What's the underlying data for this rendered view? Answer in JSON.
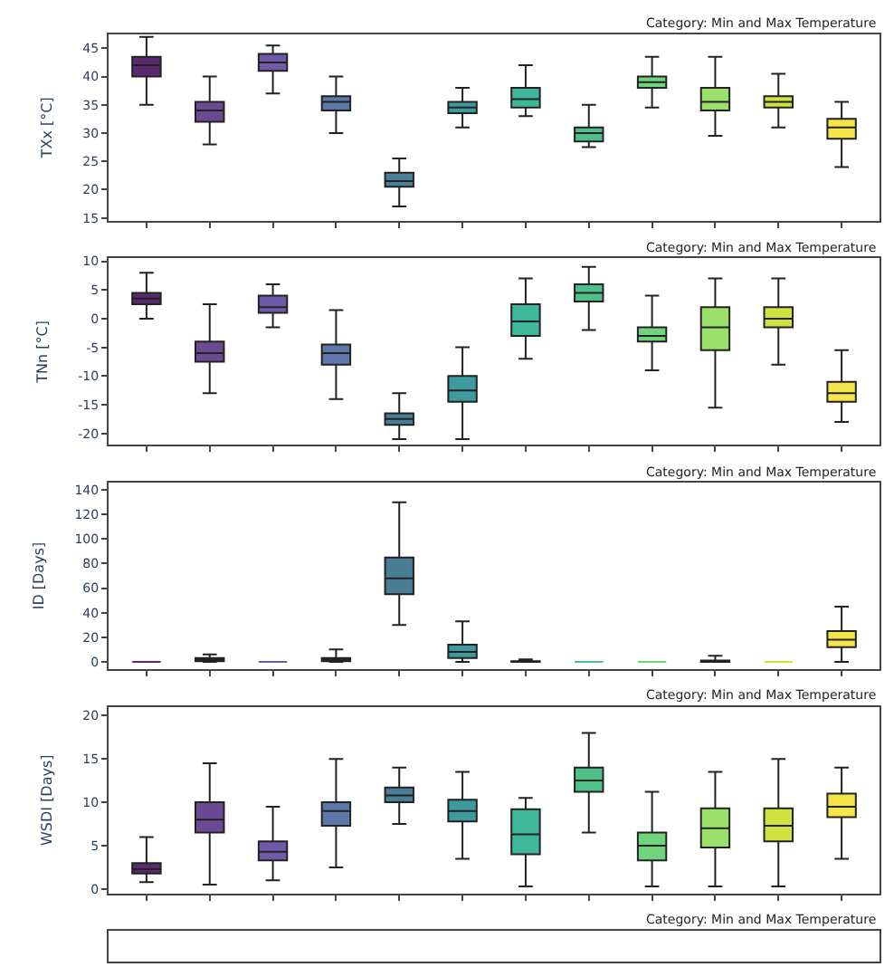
{
  "chart_data": [
    {
      "type": "box",
      "title": "Category: Min and Max Temperature",
      "ylabel": "TXx [°C]",
      "categories": [
        null,
        null,
        null,
        null,
        null,
        null,
        null,
        null,
        null,
        null,
        null,
        null
      ],
      "ylim": [
        14.5,
        47.5
      ],
      "yticks": [
        15,
        20,
        25,
        30,
        35,
        40,
        45
      ],
      "tick_labels": "y",
      "colors": [
        "#5b2a6e",
        "#6b4a94",
        "#6e5aa6",
        "#5b78a8",
        "#4a7e94",
        "#3e9a9c",
        "#3fb79a",
        "#4fc089",
        "#6fd47d",
        "#9be06a",
        "#d0e23f",
        "#f3e54a"
      ],
      "boxes": [
        {
          "low": 35,
          "q1": 40,
          "median": 42,
          "q3": 43.5,
          "high": 47
        },
        {
          "low": 28,
          "q1": 32,
          "median": 34,
          "q3": 35.5,
          "high": 40
        },
        {
          "low": 37,
          "q1": 41,
          "median": 42.5,
          "q3": 44,
          "high": 45.5
        },
        {
          "low": 30,
          "q1": 34,
          "median": 35.5,
          "q3": 36.5,
          "high": 40
        },
        {
          "low": 17,
          "q1": 20.5,
          "median": 21.5,
          "q3": 23,
          "high": 25.5
        },
        {
          "low": 31,
          "q1": 33.5,
          "median": 34.5,
          "q3": 35.5,
          "high": 38
        },
        {
          "low": 33,
          "q1": 34.5,
          "median": 36,
          "q3": 38,
          "high": 42
        },
        {
          "low": 27.5,
          "q1": 28.5,
          "median": 30,
          "q3": 31,
          "high": 35
        },
        {
          "low": 34.5,
          "q1": 38,
          "median": 39,
          "q3": 40,
          "high": 43.5
        },
        {
          "low": 29.5,
          "q1": 34,
          "median": 35.5,
          "q3": 38,
          "high": 43.5
        },
        {
          "low": 31,
          "q1": 34.5,
          "median": 35.5,
          "q3": 36.5,
          "high": 40.5
        },
        {
          "low": 24,
          "q1": 29,
          "median": 31,
          "q3": 32.5,
          "high": 35.5
        }
      ]
    },
    {
      "type": "box",
      "title": "Category: Min and Max Temperature",
      "ylabel": "TNn [°C]",
      "categories": [
        null,
        null,
        null,
        null,
        null,
        null,
        null,
        null,
        null,
        null,
        null,
        null
      ],
      "ylim": [
        -22,
        10.5
      ],
      "yticks": [
        -20,
        -15,
        -10,
        -5,
        0,
        5,
        10
      ],
      "tick_labels": "y",
      "colors": [
        "#5b2a6e",
        "#6b4a94",
        "#6e5aa6",
        "#5b78a8",
        "#4a7e94",
        "#3e9a9c",
        "#3fb79a",
        "#4fc089",
        "#6fd47d",
        "#9be06a",
        "#d0e23f",
        "#f3e54a"
      ],
      "boxes": [
        {
          "low": 0,
          "q1": 2.5,
          "median": 3.5,
          "q3": 4.5,
          "high": 8
        },
        {
          "low": -13,
          "q1": -7.5,
          "median": -6,
          "q3": -4,
          "high": 2.5
        },
        {
          "low": -1.5,
          "q1": 1,
          "median": 2,
          "q3": 4,
          "high": 6
        },
        {
          "low": -14,
          "q1": -8,
          "median": -6,
          "q3": -4.5,
          "high": 1.5
        },
        {
          "low": -21,
          "q1": -18.5,
          "median": -17.5,
          "q3": -16.5,
          "high": -13
        },
        {
          "low": -21,
          "q1": -14.5,
          "median": -12.5,
          "q3": -10,
          "high": -5
        },
        {
          "low": -7,
          "q1": -3,
          "median": -0.5,
          "q3": 2.5,
          "high": 7
        },
        {
          "low": -2,
          "q1": 3,
          "median": 4.5,
          "q3": 6,
          "high": 9
        },
        {
          "low": -9,
          "q1": -4,
          "median": -3,
          "q3": -1.5,
          "high": 4
        },
        {
          "low": -15.5,
          "q1": -5.5,
          "median": -1.5,
          "q3": 2,
          "high": 7
        },
        {
          "low": -8,
          "q1": -1.5,
          "median": 0,
          "q3": 2,
          "high": 7
        },
        {
          "low": -18,
          "q1": -14.5,
          "median": -13,
          "q3": -11,
          "high": -5.5
        }
      ]
    },
    {
      "type": "box",
      "title": "Category: Min and Max Temperature",
      "ylabel": "ID [Days]",
      "categories": [
        null,
        null,
        null,
        null,
        null,
        null,
        null,
        null,
        null,
        null,
        null,
        null
      ],
      "ylim": [
        -6,
        146
      ],
      "yticks": [
        0,
        20,
        40,
        60,
        80,
        100,
        120,
        140
      ],
      "tick_labels": "y",
      "colors": [
        "#5b2a6e",
        "#6b4a94",
        "#6e5aa6",
        "#5b78a8",
        "#4a7e94",
        "#3e9a9c",
        "#3fb79a",
        "#4fc089",
        "#6fd47d",
        "#9be06a",
        "#d0e23f",
        "#f3e54a"
      ],
      "boxes": [
        {
          "low": 0,
          "q1": 0,
          "median": 0,
          "q3": 0,
          "high": 0
        },
        {
          "low": 0,
          "q1": 0.5,
          "median": 1.5,
          "q3": 3,
          "high": 6
        },
        {
          "low": 0,
          "q1": 0,
          "median": 0,
          "q3": 0,
          "high": 0
        },
        {
          "low": 0,
          "q1": 0.5,
          "median": 2,
          "q3": 3,
          "high": 10
        },
        {
          "low": 30,
          "q1": 55,
          "median": 68,
          "q3": 85,
          "high": 130
        },
        {
          "low": 0,
          "q1": 3,
          "median": 8,
          "q3": 14,
          "high": 33
        },
        {
          "low": 0,
          "q1": 0,
          "median": 0,
          "q3": 0.5,
          "high": 2
        },
        {
          "low": 0,
          "q1": 0,
          "median": 0,
          "q3": 0,
          "high": 0
        },
        {
          "low": 0,
          "q1": 0,
          "median": 0,
          "q3": 0,
          "high": 0
        },
        {
          "low": 0,
          "q1": 0,
          "median": 0,
          "q3": 1,
          "high": 5
        },
        {
          "low": 0,
          "q1": 0,
          "median": 0,
          "q3": 0,
          "high": 0
        },
        {
          "low": 0,
          "q1": 12,
          "median": 18,
          "q3": 25,
          "high": 45
        }
      ]
    },
    {
      "type": "box",
      "title": "Category: Min and Max Temperature",
      "ylabel": "WSDI [Days]",
      "categories": [
        null,
        null,
        null,
        null,
        null,
        null,
        null,
        null,
        null,
        null,
        null,
        null
      ],
      "ylim": [
        -0.5,
        21
      ],
      "yticks": [
        0,
        5,
        10,
        15,
        20
      ],
      "tick_labels": "y",
      "colors": [
        "#5b2a6e",
        "#6b4a94",
        "#6e5aa6",
        "#5b78a8",
        "#4a7e94",
        "#3e9a9c",
        "#3fb79a",
        "#4fc089",
        "#6fd47d",
        "#9be06a",
        "#d0e23f",
        "#f3e54a"
      ],
      "boxes": [
        {
          "low": 0.8,
          "q1": 1.8,
          "median": 2.3,
          "q3": 3,
          "high": 6
        },
        {
          "low": 0.5,
          "q1": 6.5,
          "median": 8,
          "q3": 10,
          "high": 14.5
        },
        {
          "low": 1,
          "q1": 3.3,
          "median": 4.3,
          "q3": 5.5,
          "high": 9.5
        },
        {
          "low": 2.5,
          "q1": 7.3,
          "median": 9,
          "q3": 10,
          "high": 15
        },
        {
          "low": 7.5,
          "q1": 10,
          "median": 10.8,
          "q3": 11.7,
          "high": 14
        },
        {
          "low": 3.5,
          "q1": 7.8,
          "median": 9,
          "q3": 10.3,
          "high": 13.5
        },
        {
          "low": 0.3,
          "q1": 4,
          "median": 6.3,
          "q3": 9.2,
          "high": 10.5
        },
        {
          "low": 6.5,
          "q1": 11.2,
          "median": 12.5,
          "q3": 14,
          "high": 18
        },
        {
          "low": 0.3,
          "q1": 3.3,
          "median": 5,
          "q3": 6.5,
          "high": 11.2
        },
        {
          "low": 0.3,
          "q1": 4.8,
          "median": 7,
          "q3": 9.3,
          "high": 13.5
        },
        {
          "low": 0.3,
          "q1": 5.5,
          "median": 7.3,
          "q3": 9.3,
          "high": 15
        },
        {
          "low": 3.5,
          "q1": 8.3,
          "median": 9.5,
          "q3": 11,
          "high": 14
        }
      ]
    },
    {
      "type": "other",
      "title": "Category: Min and Max Temperature"
    }
  ]
}
